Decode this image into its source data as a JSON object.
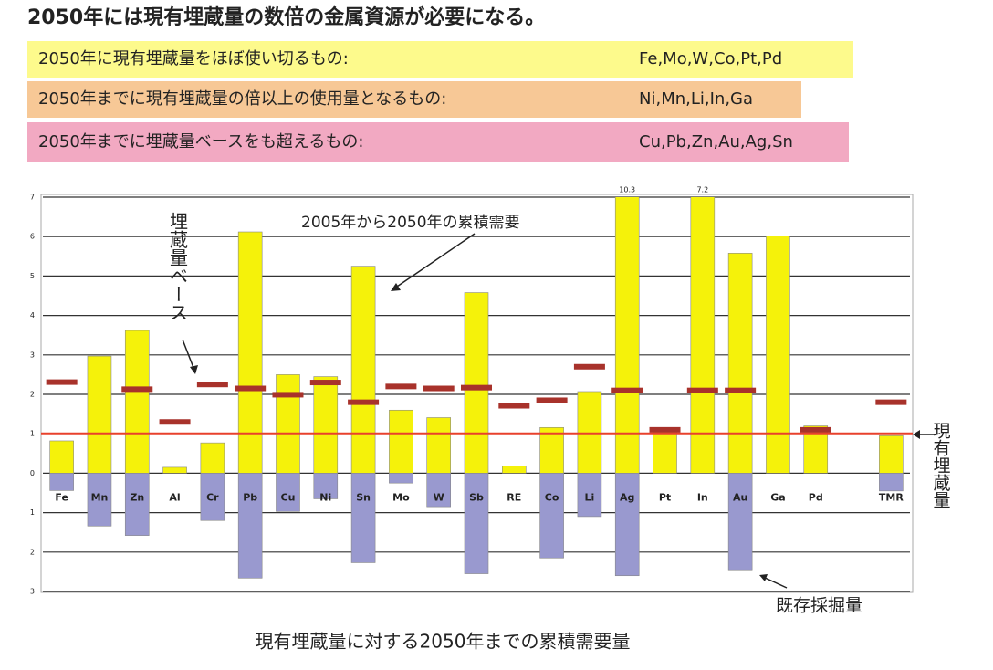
{
  "chart_data": {
    "type": "bar",
    "title": "2050年には現有埋蔵量の数倍の金属資源が必要になる。",
    "groups": [
      {
        "label": "2050年に現有埋蔵量をほぼ使い切るもの:",
        "elements": "Fe,Mo,W,Co,Pt,Pd",
        "color": "#fdfa8c"
      },
      {
        "label": "2050年までに現有埋蔵量の倍以上の使用量となるもの:",
        "elements": "Ni,Mn,Li,In,Ga",
        "color": "#f7c896"
      },
      {
        "label": "2050年までに埋蔵量ベースをも超えるもの:",
        "elements": "Cu,Pb,Zn,Au,Ag,Sn",
        "color": "#f2a9c2"
      }
    ],
    "categories": [
      "Fe",
      "Mn",
      "Zn",
      "Al",
      "Cr",
      "Pb",
      "Cu",
      "Ni",
      "Sn",
      "Mo",
      "W",
      "Sb",
      "RE",
      "Co",
      "Li",
      "Ag",
      "Pt",
      "In",
      "Au",
      "Ga",
      "Pd",
      null,
      "TMR"
    ],
    "series": [
      {
        "name": "2005年から2050年の累積需要",
        "color": "#f5f20a",
        "values": [
          0.82,
          2.97,
          3.62,
          0.15,
          0.77,
          6.12,
          2.5,
          2.45,
          5.25,
          1.6,
          1.41,
          4.58,
          0.18,
          1.16,
          2.07,
          10.3,
          1.1,
          7.2,
          5.58,
          6.02,
          1.2,
          null,
          0.95
        ],
        "value_labels": [
          null,
          null,
          null,
          null,
          null,
          null,
          null,
          null,
          null,
          null,
          null,
          null,
          null,
          null,
          null,
          "10.3",
          null,
          "7.2",
          null,
          null,
          null,
          null,
          null
        ]
      },
      {
        "name": "既存採掘量",
        "color": "#9999cf",
        "values": [
          -0.44,
          -1.34,
          -1.58,
          null,
          -1.2,
          -2.66,
          -0.97,
          -0.65,
          -2.27,
          -0.25,
          -0.85,
          -2.55,
          null,
          -2.15,
          -1.1,
          -2.6,
          null,
          null,
          -2.45,
          null,
          null,
          null,
          -0.45
        ]
      },
      {
        "name": "埋蔵量ベース",
        "color": "#a8322b",
        "marker": "dash",
        "values": [
          2.31,
          null,
          2.13,
          1.3,
          2.25,
          2.15,
          1.99,
          2.3,
          1.8,
          2.2,
          2.15,
          2.17,
          1.71,
          1.85,
          2.7,
          2.1,
          1.1,
          2.1,
          2.1,
          null,
          1.1,
          null,
          1.8
        ]
      }
    ],
    "reference_line": {
      "name": "現有埋蔵量",
      "value": 1,
      "color": "#e8412c"
    },
    "x_label": "現有埋蔵量に対する2050年までの累積需要量",
    "ylim": [
      -3,
      7
    ],
    "yticks": [
      {
        "value": -3,
        "label": "3"
      },
      {
        "value": -2,
        "label": "2"
      },
      {
        "value": -1,
        "label": "1"
      },
      0,
      1,
      2,
      3,
      4,
      5,
      6,
      7
    ],
    "grid": true
  }
}
